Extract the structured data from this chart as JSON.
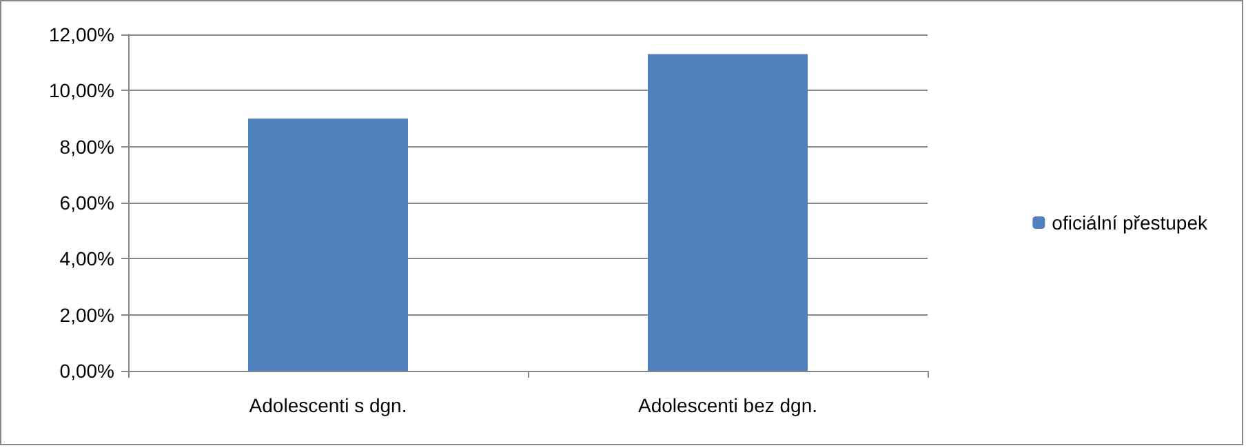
{
  "chart_data": {
    "type": "bar",
    "categories": [
      "Adolescenti s dgn.",
      "Adolescenti bez dgn."
    ],
    "series": [
      {
        "name": "oficiální přestupek",
        "color": "#4f81bd",
        "values": [
          9.0,
          11.3
        ]
      }
    ],
    "ylim": [
      0,
      12
    ],
    "yticks": [
      {
        "value": 0,
        "label": "0,00%"
      },
      {
        "value": 2,
        "label": "2,00%"
      },
      {
        "value": 4,
        "label": "4,00%"
      },
      {
        "value": 6,
        "label": "6,00%"
      },
      {
        "value": 8,
        "label": "8,00%"
      },
      {
        "value": 10,
        "label": "10,00%"
      },
      {
        "value": 12,
        "label": "12,00%"
      }
    ],
    "grid": "y",
    "legend": "right"
  }
}
